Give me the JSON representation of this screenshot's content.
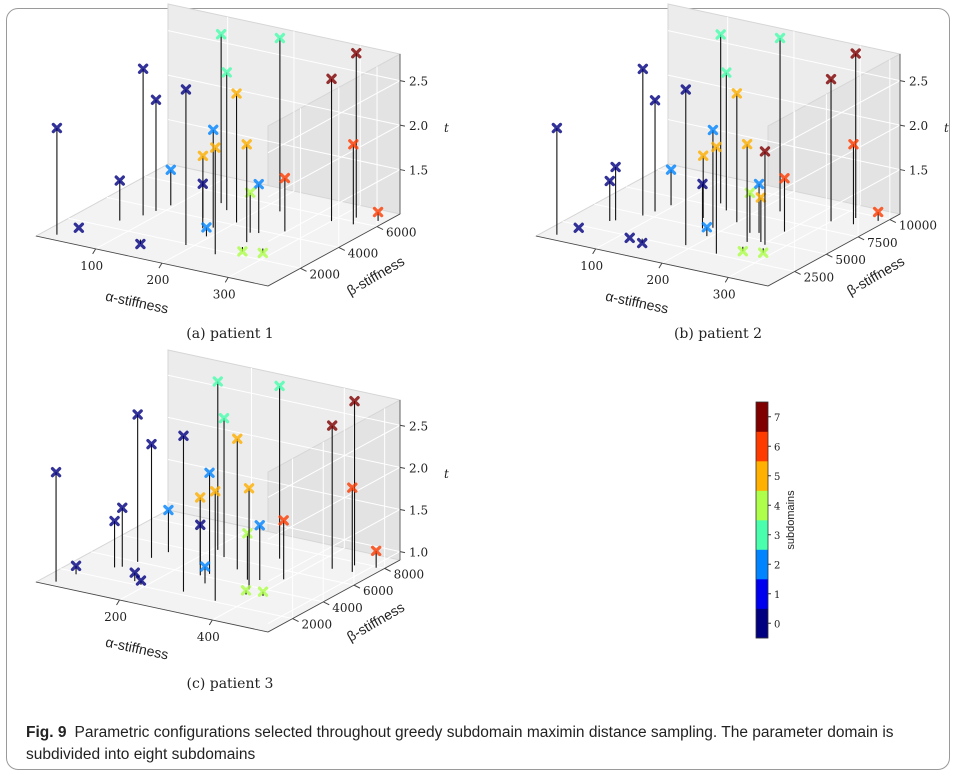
{
  "figure": {
    "caption_label": "Fig. 9",
    "caption_text": "Parametric configurations selected throughout greedy subdomain maximin distance sampling. The parameter domain is subdivided into eight subdomains"
  },
  "colorbar": {
    "label": "subdomains",
    "ticks": [
      "0",
      "1",
      "2",
      "3",
      "4",
      "5",
      "6",
      "7"
    ],
    "colors": [
      "#000080",
      "#0000f1",
      "#0084ff",
      "#49ffad",
      "#adff49",
      "#ffb000",
      "#ff3b00",
      "#800000"
    ]
  },
  "chart_data": [
    {
      "type": "scatter3d",
      "subcaption": "(a) patient 1",
      "xlabel": "α-stiffness",
      "ylabel": "β-stiffness",
      "zlabel": "t",
      "x_ticks": [
        "100",
        "200",
        "300"
      ],
      "y_ticks": [
        "2000",
        "4000",
        "6000"
      ],
      "z_ticks": [
        "1.5",
        "2.0",
        "2.5"
      ],
      "xlim": [
        10,
        360
      ],
      "ylim": [
        300,
        7200
      ],
      "zlim": [
        1.0,
        2.8
      ],
      "points": [
        {
          "x": 30,
          "y": 700,
          "z": 2.2,
          "s": 0
        },
        {
          "x": 40,
          "y": 1500,
          "z": 1.0,
          "s": 0
        },
        {
          "x": 70,
          "y": 2600,
          "z": 1.45,
          "s": 0
        },
        {
          "x": 85,
          "y": 3300,
          "z": 2.65,
          "s": 0
        },
        {
          "x": 90,
          "y": 3800,
          "z": 2.25,
          "s": 0
        },
        {
          "x": 95,
          "y": 4400,
          "z": 1.4,
          "s": 2
        },
        {
          "x": 130,
          "y": 1600,
          "z": 0.95,
          "s": 0
        },
        {
          "x": 145,
          "y": 5300,
          "z": 2.9,
          "s": 3
        },
        {
          "x": 155,
          "y": 4000,
          "z": 1.7,
          "s": 5
        },
        {
          "x": 165,
          "y": 4900,
          "z": 2.55,
          "s": 3
        },
        {
          "x": 175,
          "y": 3300,
          "z": 1.5,
          "s": 0
        },
        {
          "x": 185,
          "y": 3500,
          "z": 2.1,
          "s": 2
        },
        {
          "x": 190,
          "y": 1900,
          "z": 2.75,
          "s": 0
        },
        {
          "x": 195,
          "y": 2800,
          "z": 1.1,
          "s": 2
        },
        {
          "x": 200,
          "y": 4200,
          "z": 2.45,
          "s": 5
        },
        {
          "x": 225,
          "y": 5600,
          "z": 2.95,
          "s": 3
        },
        {
          "x": 235,
          "y": 3700,
          "z": 1.45,
          "s": 4
        },
        {
          "x": 240,
          "y": 1700,
          "z": 2.2,
          "s": 5
        },
        {
          "x": 245,
          "y": 3800,
          "z": 1.55,
          "s": 2
        },
        {
          "x": 250,
          "y": 3000,
          "z": 2.1,
          "s": 5
        },
        {
          "x": 255,
          "y": 2600,
          "z": 0.95,
          "s": 4
        },
        {
          "x": 270,
          "y": 4300,
          "z": 1.6,
          "s": 6
        },
        {
          "x": 280,
          "y": 2800,
          "z": 0.95,
          "s": 4
        },
        {
          "x": 300,
          "y": 5700,
          "z": 2.6,
          "s": 7
        },
        {
          "x": 320,
          "y": 6300,
          "z": 2.85,
          "s": 7
        },
        {
          "x": 330,
          "y": 5800,
          "z": 1.9,
          "s": 6
        },
        {
          "x": 350,
          "y": 6400,
          "z": 1.1,
          "s": 6
        }
      ]
    },
    {
      "type": "scatter3d",
      "subcaption": "(b) patient 2",
      "xlabel": "α-stiffness",
      "ylabel": "β-stiffness",
      "zlabel": "t",
      "x_ticks": [
        "100",
        "200",
        "300"
      ],
      "y_ticks": [
        "2500",
        "5000",
        "7500",
        "10000"
      ],
      "z_ticks": [
        "1.5",
        "2.0",
        "2.5"
      ],
      "xlim": [
        10,
        360
      ],
      "ylim": [
        400,
        10800
      ],
      "zlim": [
        1.0,
        2.8
      ],
      "points": [
        {
          "x": 30,
          "y": 1000,
          "z": 2.2,
          "s": 0
        },
        {
          "x": 40,
          "y": 2200,
          "z": 1.0,
          "s": 0
        },
        {
          "x": 60,
          "y": 3600,
          "z": 1.45,
          "s": 0
        },
        {
          "x": 65,
          "y": 3800,
          "z": 1.6,
          "s": 0
        },
        {
          "x": 85,
          "y": 4900,
          "z": 2.65,
          "s": 0
        },
        {
          "x": 90,
          "y": 5600,
          "z": 2.25,
          "s": 0
        },
        {
          "x": 95,
          "y": 6600,
          "z": 1.4,
          "s": 2
        },
        {
          "x": 115,
          "y": 2300,
          "z": 1.0,
          "s": 0
        },
        {
          "x": 130,
          "y": 2500,
          "z": 0.95,
          "s": 0
        },
        {
          "x": 145,
          "y": 7900,
          "z": 2.9,
          "s": 3
        },
        {
          "x": 155,
          "y": 6000,
          "z": 1.7,
          "s": 5
        },
        {
          "x": 165,
          "y": 7300,
          "z": 2.55,
          "s": 3
        },
        {
          "x": 175,
          "y": 4900,
          "z": 1.5,
          "s": 0
        },
        {
          "x": 185,
          "y": 5200,
          "z": 2.1,
          "s": 2
        },
        {
          "x": 190,
          "y": 2800,
          "z": 2.75,
          "s": 0
        },
        {
          "x": 195,
          "y": 4200,
          "z": 1.1,
          "s": 2
        },
        {
          "x": 200,
          "y": 6300,
          "z": 2.45,
          "s": 5
        },
        {
          "x": 225,
          "y": 8400,
          "z": 2.95,
          "s": 3
        },
        {
          "x": 235,
          "y": 5500,
          "z": 1.45,
          "s": 4
        },
        {
          "x": 240,
          "y": 2600,
          "z": 2.2,
          "s": 5
        },
        {
          "x": 245,
          "y": 5700,
          "z": 1.55,
          "s": 2
        },
        {
          "x": 250,
          "y": 4500,
          "z": 2.1,
          "s": 5
        },
        {
          "x": 255,
          "y": 3900,
          "z": 0.95,
          "s": 4
        },
        {
          "x": 265,
          "y": 4800,
          "z": 1.5,
          "s": 5
        },
        {
          "x": 270,
          "y": 6400,
          "z": 1.6,
          "s": 6
        },
        {
          "x": 275,
          "y": 4600,
          "z": 2.05,
          "s": 7
        },
        {
          "x": 280,
          "y": 4200,
          "z": 0.95,
          "s": 4
        },
        {
          "x": 300,
          "y": 8500,
          "z": 2.6,
          "s": 7
        },
        {
          "x": 320,
          "y": 9400,
          "z": 2.85,
          "s": 7
        },
        {
          "x": 330,
          "y": 8700,
          "z": 1.9,
          "s": 6
        },
        {
          "x": 350,
          "y": 9600,
          "z": 1.1,
          "s": 6
        }
      ]
    },
    {
      "type": "scatter3d",
      "subcaption": "(c) patient 3",
      "xlabel": "α-stiffness",
      "ylabel": "β-stiffness",
      "zlabel": "t",
      "x_ticks": [
        "200",
        "400"
      ],
      "y_ticks": [
        "2000",
        "4000",
        "6000",
        "8000"
      ],
      "z_ticks": [
        "1.0",
        "1.5",
        "2.0",
        "2.5"
      ],
      "xlim": [
        20,
        520
      ],
      "ylim": [
        400,
        9000
      ],
      "zlim": [
        0.9,
        2.8
      ],
      "points": [
        {
          "x": 50,
          "y": 800,
          "z": 2.2,
          "s": 0
        },
        {
          "x": 60,
          "y": 1800,
          "z": 1.0,
          "s": 0
        },
        {
          "x": 100,
          "y": 3100,
          "z": 1.45,
          "s": 0
        },
        {
          "x": 110,
          "y": 3300,
          "z": 1.6,
          "s": 0
        },
        {
          "x": 120,
          "y": 4000,
          "z": 2.65,
          "s": 0
        },
        {
          "x": 130,
          "y": 4600,
          "z": 2.25,
          "s": 0
        },
        {
          "x": 140,
          "y": 5400,
          "z": 1.4,
          "s": 2
        },
        {
          "x": 170,
          "y": 2300,
          "z": 1.0,
          "s": 0
        },
        {
          "x": 190,
          "y": 2100,
          "z": 0.95,
          "s": 0
        },
        {
          "x": 210,
          "y": 6500,
          "z": 2.9,
          "s": 3
        },
        {
          "x": 225,
          "y": 4900,
          "z": 1.7,
          "s": 5
        },
        {
          "x": 240,
          "y": 6000,
          "z": 2.55,
          "s": 3
        },
        {
          "x": 255,
          "y": 4000,
          "z": 1.5,
          "s": 0
        },
        {
          "x": 265,
          "y": 4300,
          "z": 2.1,
          "s": 2
        },
        {
          "x": 275,
          "y": 2300,
          "z": 2.75,
          "s": 0
        },
        {
          "x": 285,
          "y": 3400,
          "z": 1.1,
          "s": 2
        },
        {
          "x": 295,
          "y": 5200,
          "z": 2.45,
          "s": 5
        },
        {
          "x": 330,
          "y": 6900,
          "z": 2.95,
          "s": 3
        },
        {
          "x": 340,
          "y": 4500,
          "z": 1.45,
          "s": 4
        },
        {
          "x": 350,
          "y": 2100,
          "z": 2.2,
          "s": 5
        },
        {
          "x": 360,
          "y": 4700,
          "z": 1.55,
          "s": 2
        },
        {
          "x": 370,
          "y": 3700,
          "z": 2.1,
          "s": 5
        },
        {
          "x": 380,
          "y": 3200,
          "z": 0.95,
          "s": 4
        },
        {
          "x": 395,
          "y": 5200,
          "z": 1.6,
          "s": 6
        },
        {
          "x": 410,
          "y": 3400,
          "z": 0.95,
          "s": 4
        },
        {
          "x": 440,
          "y": 7000,
          "z": 2.6,
          "s": 7
        },
        {
          "x": 465,
          "y": 7700,
          "z": 2.85,
          "s": 7
        },
        {
          "x": 480,
          "y": 7100,
          "z": 1.9,
          "s": 6
        },
        {
          "x": 505,
          "y": 7900,
          "z": 1.1,
          "s": 6
        }
      ]
    }
  ]
}
